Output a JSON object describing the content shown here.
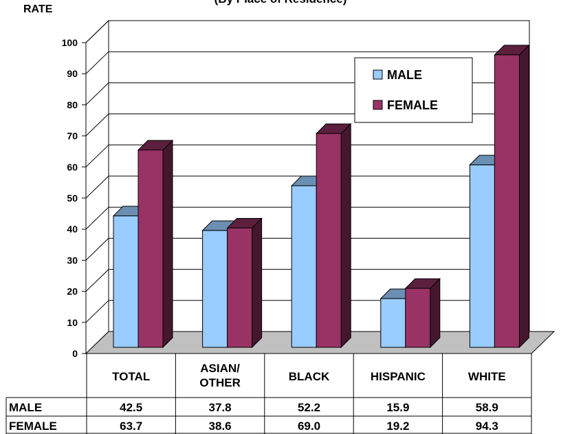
{
  "chart_data": {
    "type": "bar",
    "title": "",
    "subtitle": "(By Place of Residence)",
    "ylabel": "RATE",
    "xlabel": "",
    "ylim": [
      0,
      100
    ],
    "yticks": [
      0,
      10,
      20,
      30,
      40,
      50,
      60,
      70,
      80,
      90,
      100
    ],
    "grid": true,
    "three_d": true,
    "legend_position": "top-right",
    "categories": [
      "TOTAL",
      "ASIAN/\nOTHER",
      "BLACK",
      "HISPANIC",
      "WHITE"
    ],
    "series": [
      {
        "name": "MALE",
        "values": [
          42.5,
          37.8,
          52.2,
          15.9,
          58.9
        ],
        "color": "#99ccff"
      },
      {
        "name": "FEMALE",
        "values": [
          63.7,
          38.6,
          69.0,
          19.2,
          94.3
        ],
        "color": "#993366"
      }
    ],
    "data_table": {
      "rows": [
        {
          "label": "MALE",
          "cells": [
            "42.5",
            "37.8",
            "52.2",
            "15.9",
            "58.9"
          ]
        },
        {
          "label": "FEMALE",
          "cells": [
            "63.7",
            "38.6",
            "69.0",
            "19.2",
            "94.3"
          ]
        }
      ]
    }
  }
}
